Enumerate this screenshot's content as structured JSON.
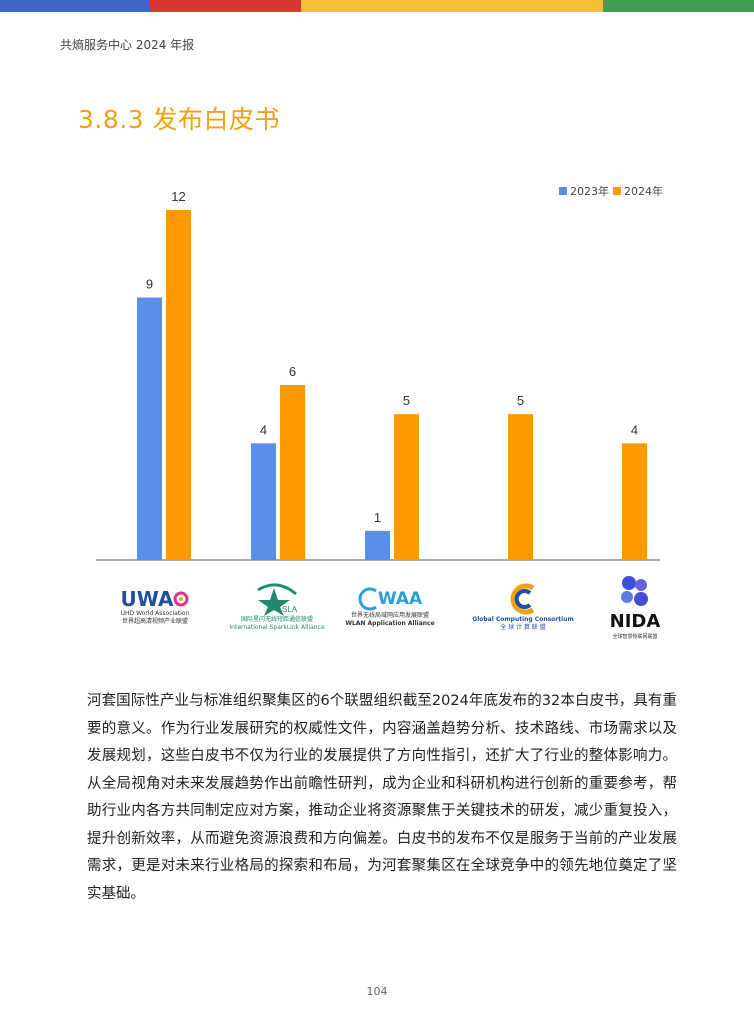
{
  "header": {
    "text": "共熵服务中心 2024 年报",
    "bar_colors": [
      "#3F67C8",
      "#D9382E",
      "#F2C032",
      "#3FA055"
    ]
  },
  "section_title": "3.8.3 发布白皮书",
  "chart_data": {
    "type": "bar",
    "categories": [
      "UWA",
      "SparkLink",
      "WAA",
      "GCC",
      "NIDA"
    ],
    "series": [
      {
        "name": "2023年",
        "color": "#5B8EE6",
        "values": [
          9,
          4,
          1,
          null,
          null
        ]
      },
      {
        "name": "2024年",
        "color": "#FF9900",
        "values": [
          12,
          6,
          5,
          5,
          4
        ]
      }
    ],
    "ylim": [
      0,
      12
    ],
    "grid": false,
    "legend": "top-right",
    "data_labels": true
  },
  "logos": {
    "uwa": {
      "name": "UWA",
      "en": "UHD World Association",
      "cn": "世界超高清视频产业联盟"
    },
    "sparklink": {
      "name": "SLA",
      "cn": "国际星闪无线短距通信联盟",
      "en": "International SparkLink Alliance"
    },
    "waa": {
      "name": "WAA",
      "cn": "世界无线局域网应用发展联盟",
      "en": "WLAN Application Alliance"
    },
    "gcc": {
      "en": "Global Computing Consortium",
      "cn": "全 球 计 算 联 盟"
    },
    "nida": {
      "name": "NIDA",
      "cn": "全球智慧物联网联盟"
    }
  },
  "paragraph": "河套国际性产业与标准组织聚集区的6个联盟组织截至2024年底发布的32本白皮书，具有重要的意义。作为行业发展研究的权威性文件，内容涵盖趋势分析、技术路线、市场需求以及发展规划，这些白皮书不仅为行业的发展提供了方向性指引，还扩大了行业的整体影响力。从全局视角对未来发展趋势作出前瞻性研判，成为企业和科研机构进行创新的重要参考，帮助行业内各方共同制定应对方案，推动企业将资源聚焦于关键技术的研发，减少重复投入，提升创新效率，从而避免资源浪费和方向偏差。白皮书的发布不仅是服务于当前的产业发展需求，更是对未来行业格局的探索和布局，为河套聚集区在全球竞争中的领先地位奠定了坚实基础。",
  "page_number": "104"
}
